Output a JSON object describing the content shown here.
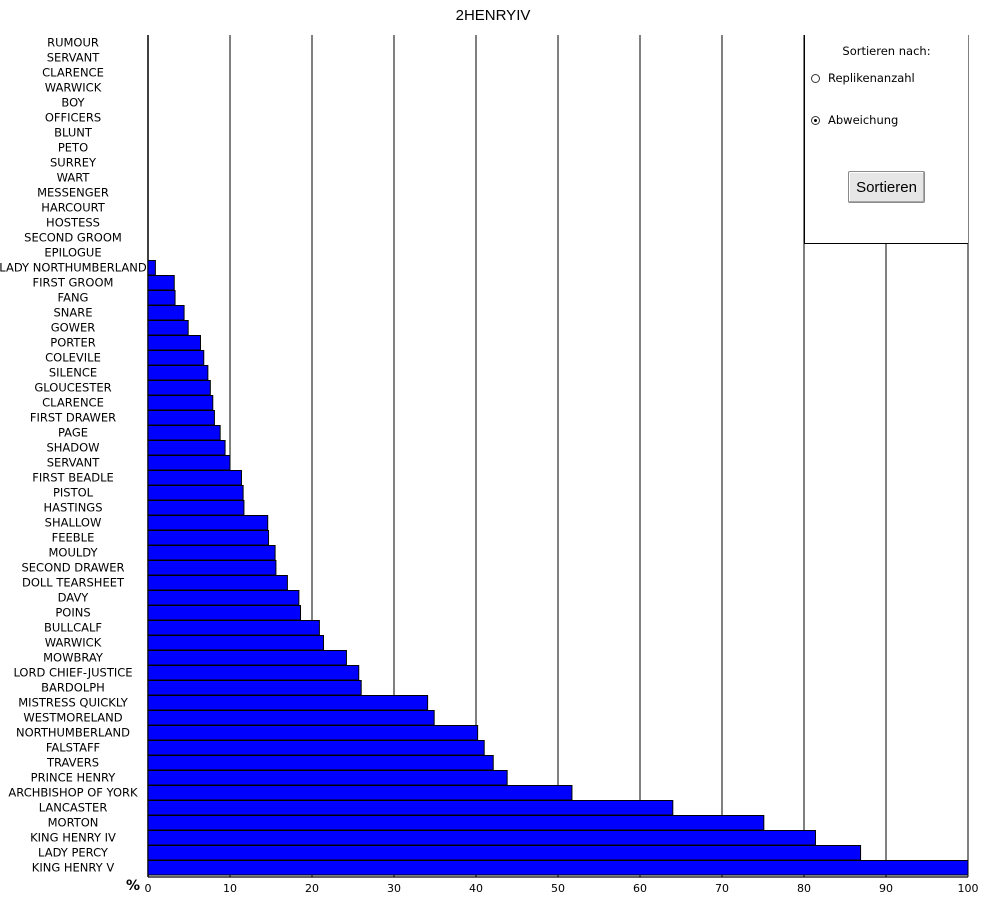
{
  "chart_data": {
    "type": "bar",
    "orientation": "horizontal",
    "title": "2HENRYIV",
    "xunit": "%",
    "xlim": [
      0,
      100
    ],
    "xticks": [
      0,
      10,
      20,
      30,
      40,
      50,
      60,
      70,
      80,
      90,
      100
    ],
    "grid": "vertical",
    "bar_color": "#0000ff",
    "categories": [
      "RUMOUR",
      "SERVANT",
      "CLARENCE",
      "WARWICK",
      "BOY",
      "OFFICERS",
      "BLUNT",
      "PETO",
      "SURREY",
      "WART",
      "MESSENGER",
      "HARCOURT",
      "HOSTESS",
      "SECOND GROOM",
      "EPILOGUE",
      "LADY NORTHUMBERLAND",
      "FIRST GROOM",
      "FANG",
      "SNARE",
      "GOWER",
      "PORTER",
      "COLEVILE",
      "SILENCE",
      "GLOUCESTER",
      "CLARENCE",
      "FIRST DRAWER",
      "PAGE",
      "SHADOW",
      "SERVANT",
      "FIRST BEADLE",
      "PISTOL",
      "HASTINGS",
      "SHALLOW",
      "FEEBLE",
      "MOULDY",
      "SECOND DRAWER",
      "DOLL TEARSHEET",
      "DAVY",
      "POINS",
      "BULLCALF",
      "WARWICK",
      "MOWBRAY",
      "LORD CHIEF-JUSTICE",
      "BARDOLPH",
      "MISTRESS QUICKLY",
      "WESTMORELAND",
      "NORTHUMBERLAND",
      "FALSTAFF",
      "TRAVERS",
      "PRINCE HENRY",
      "ARCHBISHOP OF YORK",
      "LANCASTER",
      "MORTON",
      "KING HENRY IV",
      "LADY PERCY",
      "KING HENRY V"
    ],
    "values": [
      0,
      0,
      0,
      0,
      0,
      0,
      0,
      0,
      0,
      0,
      0,
      0,
      0,
      0,
      0,
      0.9,
      3.2,
      3.3,
      4.4,
      4.9,
      6.4,
      6.8,
      7.3,
      7.6,
      7.9,
      8.1,
      8.8,
      9.4,
      10.0,
      11.4,
      11.6,
      11.7,
      14.6,
      14.7,
      15.5,
      15.6,
      17.0,
      18.4,
      18.6,
      20.9,
      21.4,
      24.2,
      25.7,
      26.0,
      34.1,
      34.9,
      40.2,
      41.0,
      42.1,
      43.8,
      51.7,
      64.0,
      75.1,
      81.4,
      86.9,
      100.0
    ]
  },
  "sort_panel": {
    "title": "Sortieren nach:",
    "options": [
      {
        "label": "Replikenanzahl",
        "checked": false
      },
      {
        "label": "Abweichung",
        "checked": true
      }
    ],
    "button_label": "Sortieren"
  }
}
